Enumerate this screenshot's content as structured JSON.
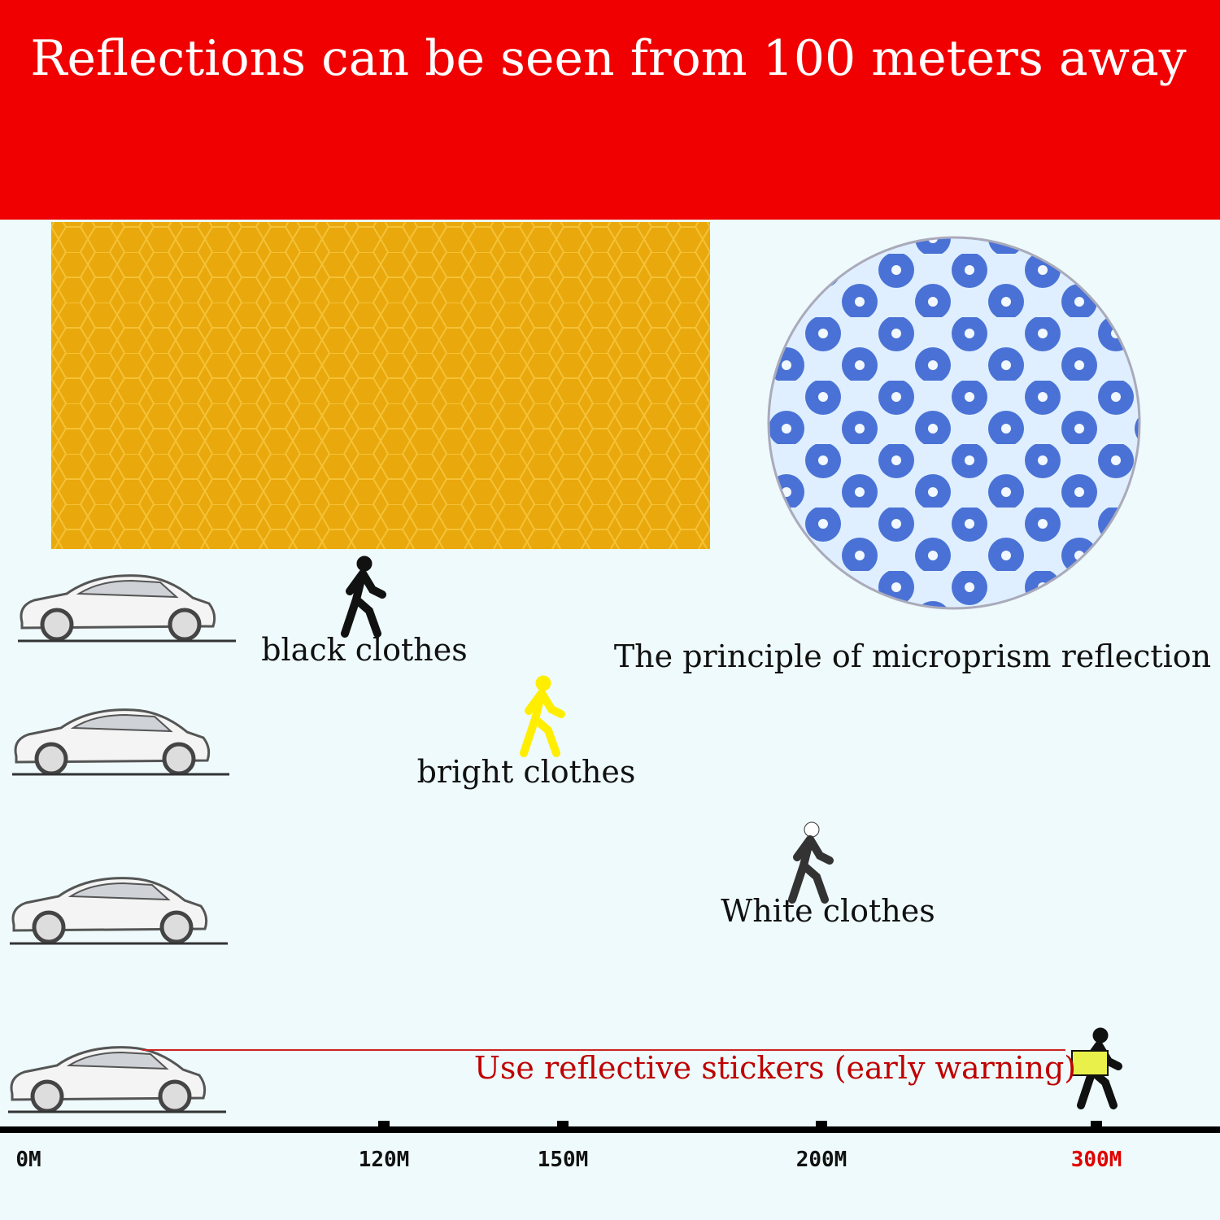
{
  "header": {
    "title": "Reflections can be seen from 100 meters away"
  },
  "labels": {
    "black": "black clothes",
    "bright": "bright clothes",
    "white": "White clothes",
    "principle": "The principle of microprism reflection",
    "stickers": "Use reflective stickers (early warning)"
  },
  "axis": {
    "ticks": [
      "0M",
      "120M",
      "150M",
      "200M",
      "300M"
    ]
  }
}
